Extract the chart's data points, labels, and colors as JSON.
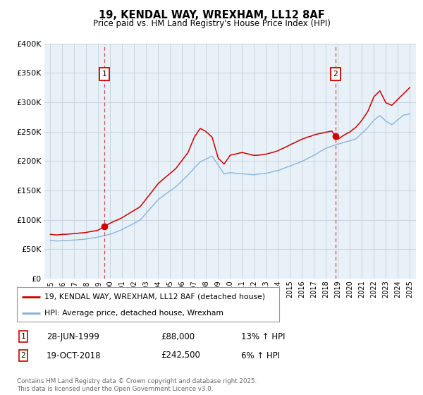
{
  "title": "19, KENDAL WAY, WREXHAM, LL12 8AF",
  "subtitle": "Price paid vs. HM Land Registry's House Price Index (HPI)",
  "ytick_values": [
    0,
    50000,
    100000,
    150000,
    200000,
    250000,
    300000,
    350000,
    400000
  ],
  "ylim": [
    0,
    400000
  ],
  "xlim_start": 1994.5,
  "xlim_end": 2025.5,
  "xticks": [
    1995,
    1996,
    1997,
    1998,
    1999,
    2000,
    2001,
    2002,
    2003,
    2004,
    2005,
    2006,
    2007,
    2008,
    2009,
    2010,
    2011,
    2012,
    2013,
    2014,
    2015,
    2016,
    2017,
    2018,
    2019,
    2020,
    2021,
    2022,
    2023,
    2024,
    2025
  ],
  "red_line_color": "#cc0000",
  "blue_line_color": "#7fb0d8",
  "marker1_x": 1999.49,
  "marker1_y": 88000,
  "marker2_x": 2018.8,
  "marker2_y": 242500,
  "marker1_label": "1",
  "marker1_date": "28-JUN-1999",
  "marker1_price": "£88,000",
  "marker1_hpi": "13% ↑ HPI",
  "marker2_label": "2",
  "marker2_date": "19-OCT-2018",
  "marker2_price": "£242,500",
  "marker2_hpi": "6% ↑ HPI",
  "legend_red": "19, KENDAL WAY, WREXHAM, LL12 8AF (detached house)",
  "legend_blue": "HPI: Average price, detached house, Wrexham",
  "footnote": "Contains HM Land Registry data © Crown copyright and database right 2025.\nThis data is licensed under the Open Government Licence v3.0.",
  "background_color": "#e8f0f8",
  "grid_color": "#c8d4e0"
}
